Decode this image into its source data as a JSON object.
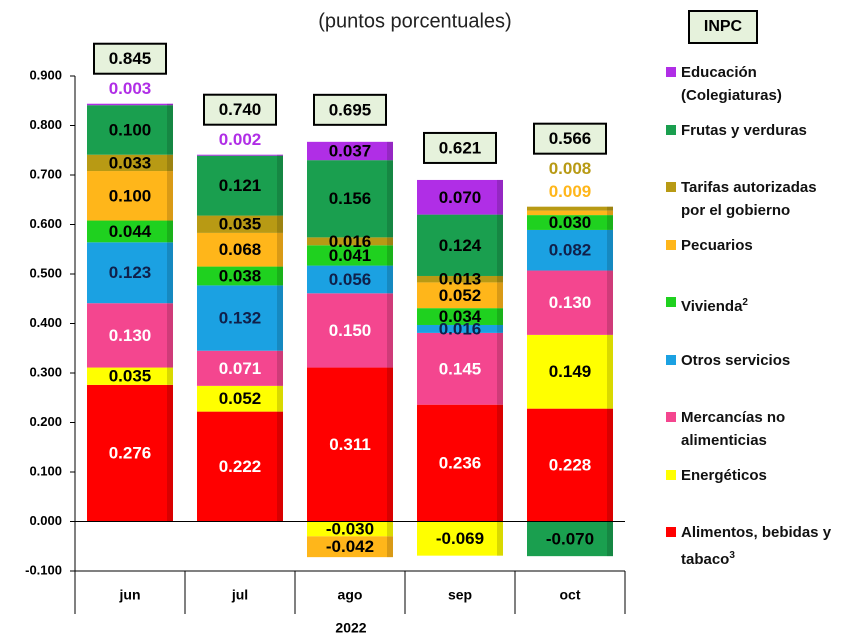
{
  "chart_data": {
    "type": "bar",
    "stacked": true,
    "subtitle": "(puntos porcentuales)",
    "legend_title": "INPC",
    "x_label": "2022",
    "categories": [
      "jun",
      "jul",
      "ago",
      "sep",
      "oct"
    ],
    "ylim": [
      -0.1,
      0.9
    ],
    "yticks": [
      {
        "value": -0.1,
        "label": "-0.100"
      },
      {
        "value": 0,
        "label": "0.000"
      },
      {
        "value": 0.1,
        "label": "0.100"
      },
      {
        "value": 0.2,
        "label": "0.200"
      },
      {
        "value": 0.3,
        "label": "0.300"
      },
      {
        "value": 0.4,
        "label": "0.400"
      },
      {
        "value": 0.5,
        "label": "0.500"
      },
      {
        "value": 0.6,
        "label": "0.600"
      },
      {
        "value": 0.7,
        "label": "0.700"
      },
      {
        "value": 0.8,
        "label": "0.800"
      },
      {
        "value": 0.9,
        "label": "0.900"
      }
    ],
    "series": [
      {
        "name": "Alimentos, bebidas y tabaco",
        "footnote": "3",
        "color": "#ff0000",
        "label_color": "#ffffff",
        "values": [
          0.276,
          0.222,
          0.311,
          0.236,
          0.228
        ],
        "value_labels": [
          "0.276",
          "0.222",
          "0.311",
          "0.236",
          "0.228"
        ]
      },
      {
        "name": "Energéticos",
        "color": "#ffff00",
        "label_color": "#000000",
        "values": [
          0.035,
          0.052,
          -0.03,
          -0.069,
          0.149
        ],
        "value_labels": [
          "0.035",
          "0.052",
          "-0.030",
          "-0.069",
          "0.149"
        ]
      },
      {
        "name": "Mercancías no alimenticias",
        "color": "#f4468f",
        "label_color": "#ffffff",
        "values": [
          0.13,
          0.071,
          0.15,
          0.145,
          0.13
        ],
        "value_labels": [
          "0.130",
          "0.071",
          "0.150",
          "0.145",
          "0.130"
        ]
      },
      {
        "name": "Otros servicios",
        "color": "#1ba1e2",
        "label_color": "#10204a",
        "values": [
          0.123,
          0.132,
          0.056,
          0.016,
          0.082
        ],
        "value_labels": [
          "0.123",
          "0.132",
          "0.056",
          "0.016",
          "0.082"
        ]
      },
      {
        "name": "Vivienda",
        "footnote": "2",
        "color": "#1fd11f",
        "label_color": "#000000",
        "values": [
          0.044,
          0.038,
          0.041,
          0.034,
          0.03
        ],
        "value_labels": [
          "0.044",
          "0.038",
          "0.041",
          "0.034",
          "0.030"
        ]
      },
      {
        "name": "Pecuarios",
        "color": "#ffb61a",
        "label_color": "#000000",
        "values": [
          0.1,
          0.068,
          -0.042,
          0.052,
          0.009
        ],
        "value_labels": [
          "0.100",
          "0.068",
          "-0.042",
          "0.052",
          "0.009"
        ]
      },
      {
        "name": "Tarifas autorizadas por el gobierno",
        "color": "#b89a14",
        "label_color": "#000000",
        "values": [
          0.033,
          0.035,
          0.016,
          0.013,
          0.008
        ],
        "value_labels": [
          "0.033",
          "0.035",
          "0.016",
          "0.013",
          "0.008"
        ]
      },
      {
        "name": "Frutas y verduras",
        "color": "#1a9f4f",
        "label_color": "#000000",
        "values": [
          0.1,
          0.121,
          0.156,
          0.124,
          -0.07
        ],
        "value_labels": [
          "0.100",
          "0.121",
          "0.156",
          "0.124",
          "-0.070"
        ]
      },
      {
        "name": "Educación (Colegiaturas)",
        "color": "#b02ee6",
        "label_color": "#000000",
        "values": [
          0.003,
          0.002,
          0.037,
          0.07,
          null
        ],
        "value_labels": [
          "0.003",
          "0.002",
          "0.037",
          "0.070",
          null
        ]
      }
    ],
    "totals": {
      "values": [
        0.845,
        0.74,
        0.695,
        0.621,
        0.566
      ],
      "value_labels": [
        "0.845",
        "0.740",
        "0.695",
        "0.621",
        "0.566"
      ]
    }
  }
}
